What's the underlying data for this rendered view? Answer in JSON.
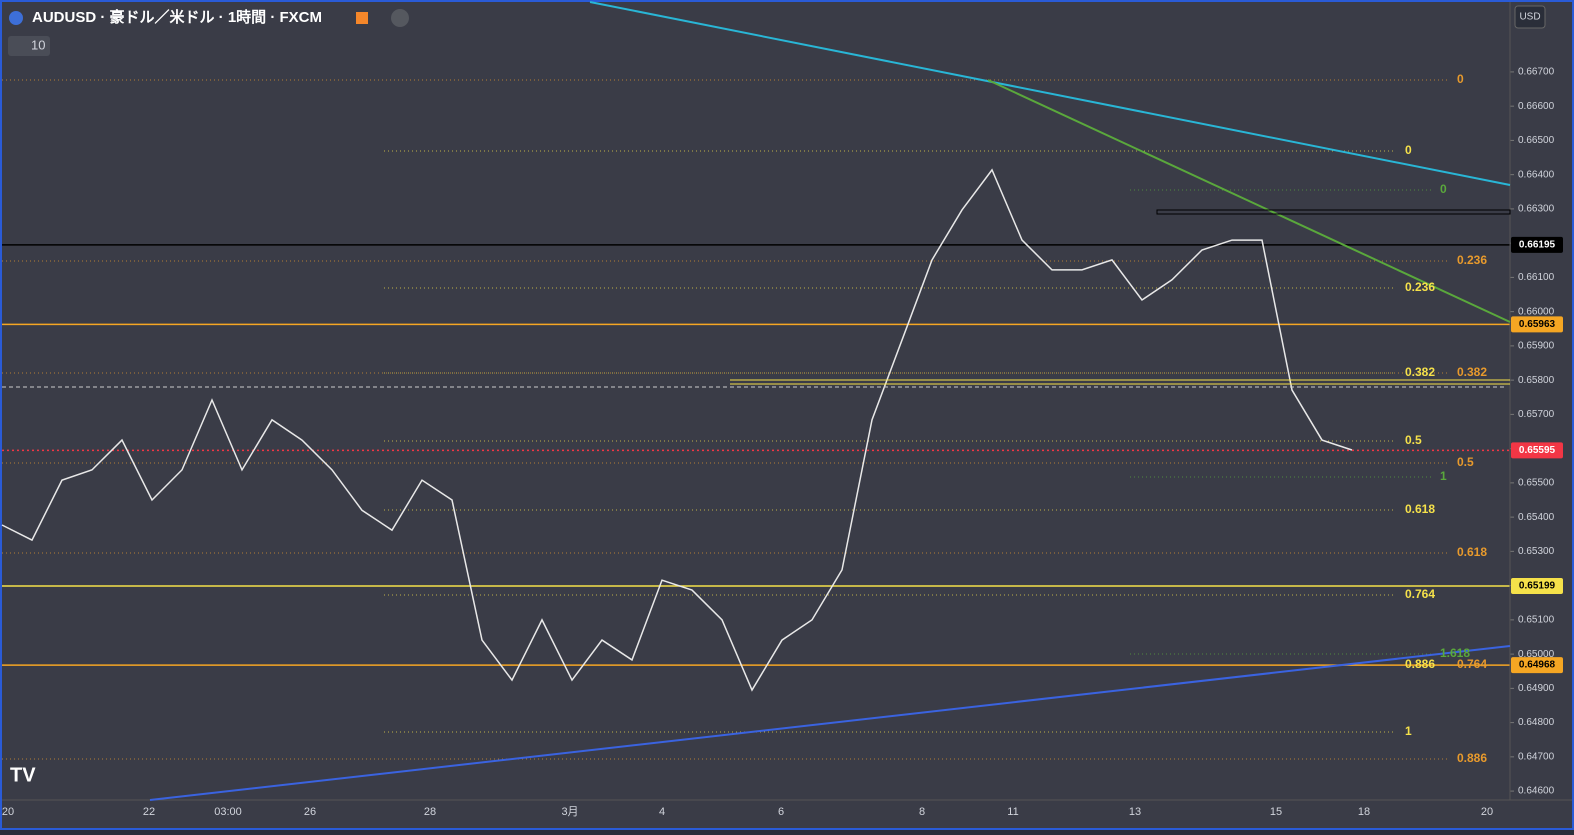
{
  "header": {
    "title": "AUDUSD · 豪ドル／米ドル · 1時間 · FXCM",
    "interval_badge": "10",
    "currency": "USD"
  },
  "chart_data": {
    "type": "line",
    "title": "AUDUSD · 1時間",
    "x_labels": [
      "20",
      "22",
      "03:00",
      "26",
      "28",
      "3月",
      "4",
      "6",
      "8",
      "11",
      "13",
      "15",
      "18",
      "20"
    ],
    "series": [
      {
        "name": "AUDUSD",
        "color": "#e8e8e8",
        "values": [
          0.65377,
          0.65333,
          0.65508,
          0.65538,
          0.65625,
          0.6545,
          0.65538,
          0.65742,
          0.65538,
          0.65684,
          0.65625,
          0.65538,
          0.6542,
          0.65362,
          0.65508,
          0.6545,
          0.65041,
          0.64924,
          0.651,
          0.64924,
          0.65041,
          0.64983,
          0.65216,
          0.65187,
          0.651,
          0.64895,
          0.65041,
          0.651,
          0.65246,
          0.65684,
          0.65917,
          0.66151,
          0.66297,
          0.66414,
          0.66209,
          0.66122,
          0.66122,
          0.66151,
          0.66034,
          0.66093,
          0.6618,
          0.66209,
          0.66209,
          0.65771,
          0.65625,
          0.65596
        ]
      }
    ],
    "ylim": [
      0.64574,
      0.6691
    ],
    "yticks": [
      {
        "value": 0.646,
        "label": "0.64600"
      },
      {
        "value": 0.647,
        "label": "0.64700"
      },
      {
        "value": 0.648,
        "label": "0.64800"
      },
      {
        "value": 0.649,
        "label": "0.64900"
      },
      {
        "value": 0.65,
        "label": "0.65000"
      },
      {
        "value": 0.651,
        "label": "0.65100"
      },
      {
        "value": 0.652,
        "label": "0.65200"
      },
      {
        "value": 0.653,
        "label": "0.65300"
      },
      {
        "value": 0.654,
        "label": "0.65400"
      },
      {
        "value": 0.655,
        "label": "0.65500"
      },
      {
        "value": 0.656,
        "label": "0.65600"
      },
      {
        "value": 0.657,
        "label": "0.65700"
      },
      {
        "value": 0.658,
        "label": "0.65800"
      },
      {
        "value": 0.659,
        "label": "0.65900"
      },
      {
        "value": 0.66,
        "label": "0.66000"
      },
      {
        "value": 0.661,
        "label": "0.66100"
      },
      {
        "value": 0.662,
        "label": "0.66200"
      },
      {
        "value": 0.663,
        "label": "0.66300"
      },
      {
        "value": 0.664,
        "label": "0.66400"
      },
      {
        "value": 0.665,
        "label": "0.66500"
      },
      {
        "value": 0.666,
        "label": "0.66600"
      },
      {
        "value": 0.667,
        "label": "0.66700"
      }
    ],
    "levels": [
      {
        "value": 0.66195,
        "color": "#000000",
        "text_color": "#ffffff"
      },
      {
        "value": 0.65963,
        "color": "#f5a623",
        "text_color": "#000000"
      },
      {
        "value": 0.65595,
        "color": "#f23645",
        "text_color": "#ffffff"
      },
      {
        "value": 0.65199,
        "color": "#f5e14a",
        "text_color": "#000000"
      },
      {
        "value": 0.64968,
        "color": "#f5a623",
        "text_color": "#000000"
      }
    ],
    "fib_a": [
      "0",
      "0.236",
      "0.382",
      "0.5",
      "0.618",
      "0.764",
      "0.886",
      "1"
    ],
    "fib_b": [
      "0",
      "0.236",
      "0.382",
      "0.5",
      "0.618",
      "0.764",
      "0.886"
    ],
    "fib_c": [
      "0",
      "1",
      "1.618"
    ]
  }
}
